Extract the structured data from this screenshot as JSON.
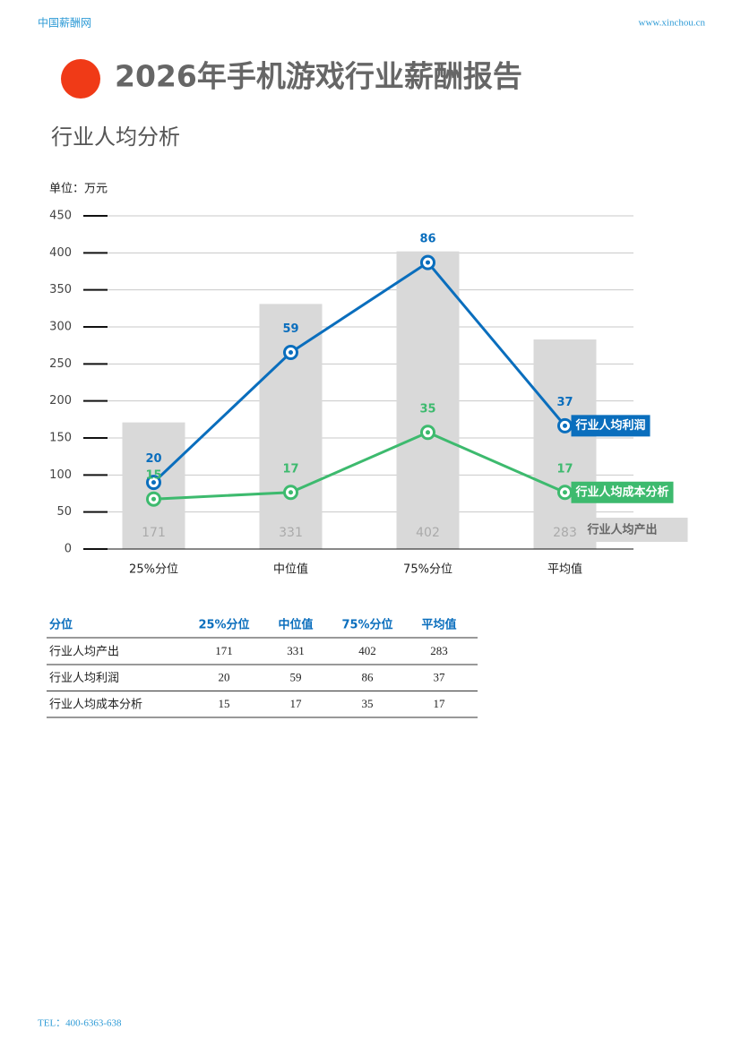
{
  "header": {
    "site": "中国薪酬网",
    "url": "www.xinchou.cn",
    "title": "2026年手机游戏行业薪酬报告",
    "subtitle": "行业人均分析"
  },
  "chart_data": {
    "type": "bar",
    "unit_label": "单位：万元",
    "categories": [
      "25%分位",
      "中位值",
      "75%分位",
      "平均值"
    ],
    "series": [
      {
        "name": "行业人均产出",
        "type": "bar",
        "color": "#d9d9d9",
        "values": [
          171,
          331,
          402,
          283
        ]
      },
      {
        "name": "行业人均利润",
        "type": "line",
        "axis": "y2",
        "color": "#0a6ebd",
        "values": [
          20,
          59,
          86,
          37
        ]
      },
      {
        "name": "行业人均成本分析",
        "type": "line",
        "axis": "y2",
        "color": "#3dba6e",
        "values": [
          15,
          17,
          35,
          17
        ]
      }
    ],
    "ylim": [
      0,
      450
    ],
    "yticks": [
      0,
      50,
      100,
      150,
      200,
      250,
      300,
      350,
      400,
      450
    ],
    "y2lim": [
      0,
      100
    ],
    "grid": true
  },
  "table": {
    "header": [
      "分位",
      "25%分位",
      "中位值",
      "75%分位",
      "平均值"
    ],
    "rows": [
      [
        "行业人均产出",
        "171",
        "331",
        "402",
        "283"
      ],
      [
        "行业人均利润",
        "20",
        "59",
        "86",
        "37"
      ],
      [
        "行业人均成本分析",
        "15",
        "17",
        "35",
        "17"
      ]
    ]
  },
  "footer": {
    "tel": "TEL：400-6363-638"
  }
}
